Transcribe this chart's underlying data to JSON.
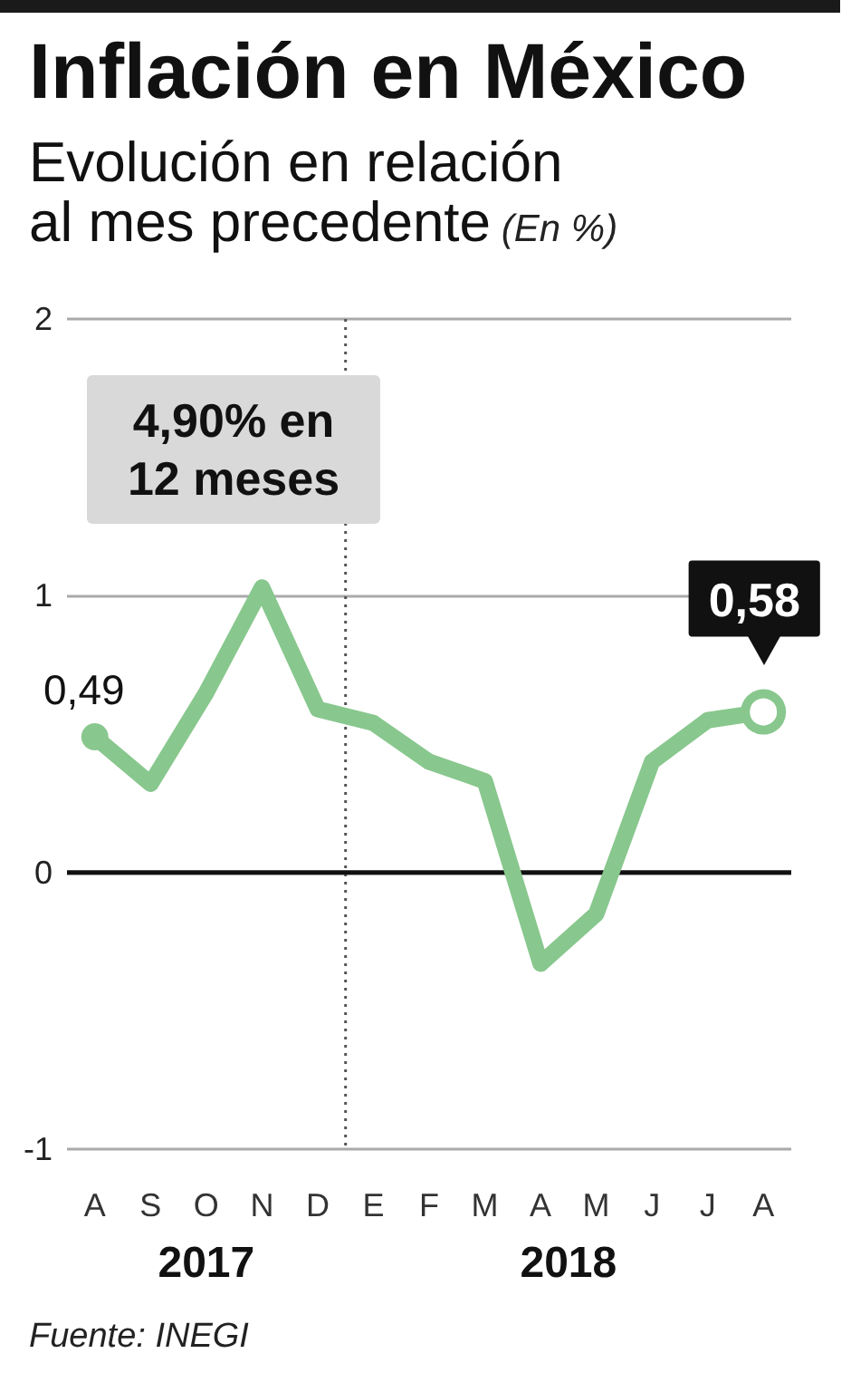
{
  "chart_data": {
    "type": "line",
    "title": "Inflación en México",
    "subtitle": "Evolución en relación al mes precedente",
    "ylabel": "(En %)",
    "categories": [
      "A",
      "S",
      "O",
      "N",
      "D",
      "E",
      "F",
      "M",
      "A",
      "M",
      "J",
      "J",
      "A"
    ],
    "values": [
      0.49,
      0.32,
      0.65,
      1.03,
      0.59,
      0.54,
      0.4,
      0.33,
      -0.33,
      -0.15,
      0.4,
      0.55,
      0.58
    ],
    "value_labels": [
      "0,49",
      null,
      null,
      null,
      null,
      null,
      null,
      null,
      null,
      null,
      null,
      null,
      "0,58"
    ],
    "color": "#88c78d",
    "ylim": [
      -1,
      2
    ],
    "yticks": [
      -1,
      0,
      1,
      2
    ],
    "grid": "y",
    "ref_lines": [
      {
        "axis": "x",
        "value": "E",
        "color": "#555555",
        "line_style": "dotted"
      },
      {
        "axis": "y",
        "value": 0,
        "color": "#111111"
      }
    ],
    "annotations": [
      "4,90% en 12 meses",
      "2017",
      "2018",
      "Fuente: INEGI"
    ]
  }
}
